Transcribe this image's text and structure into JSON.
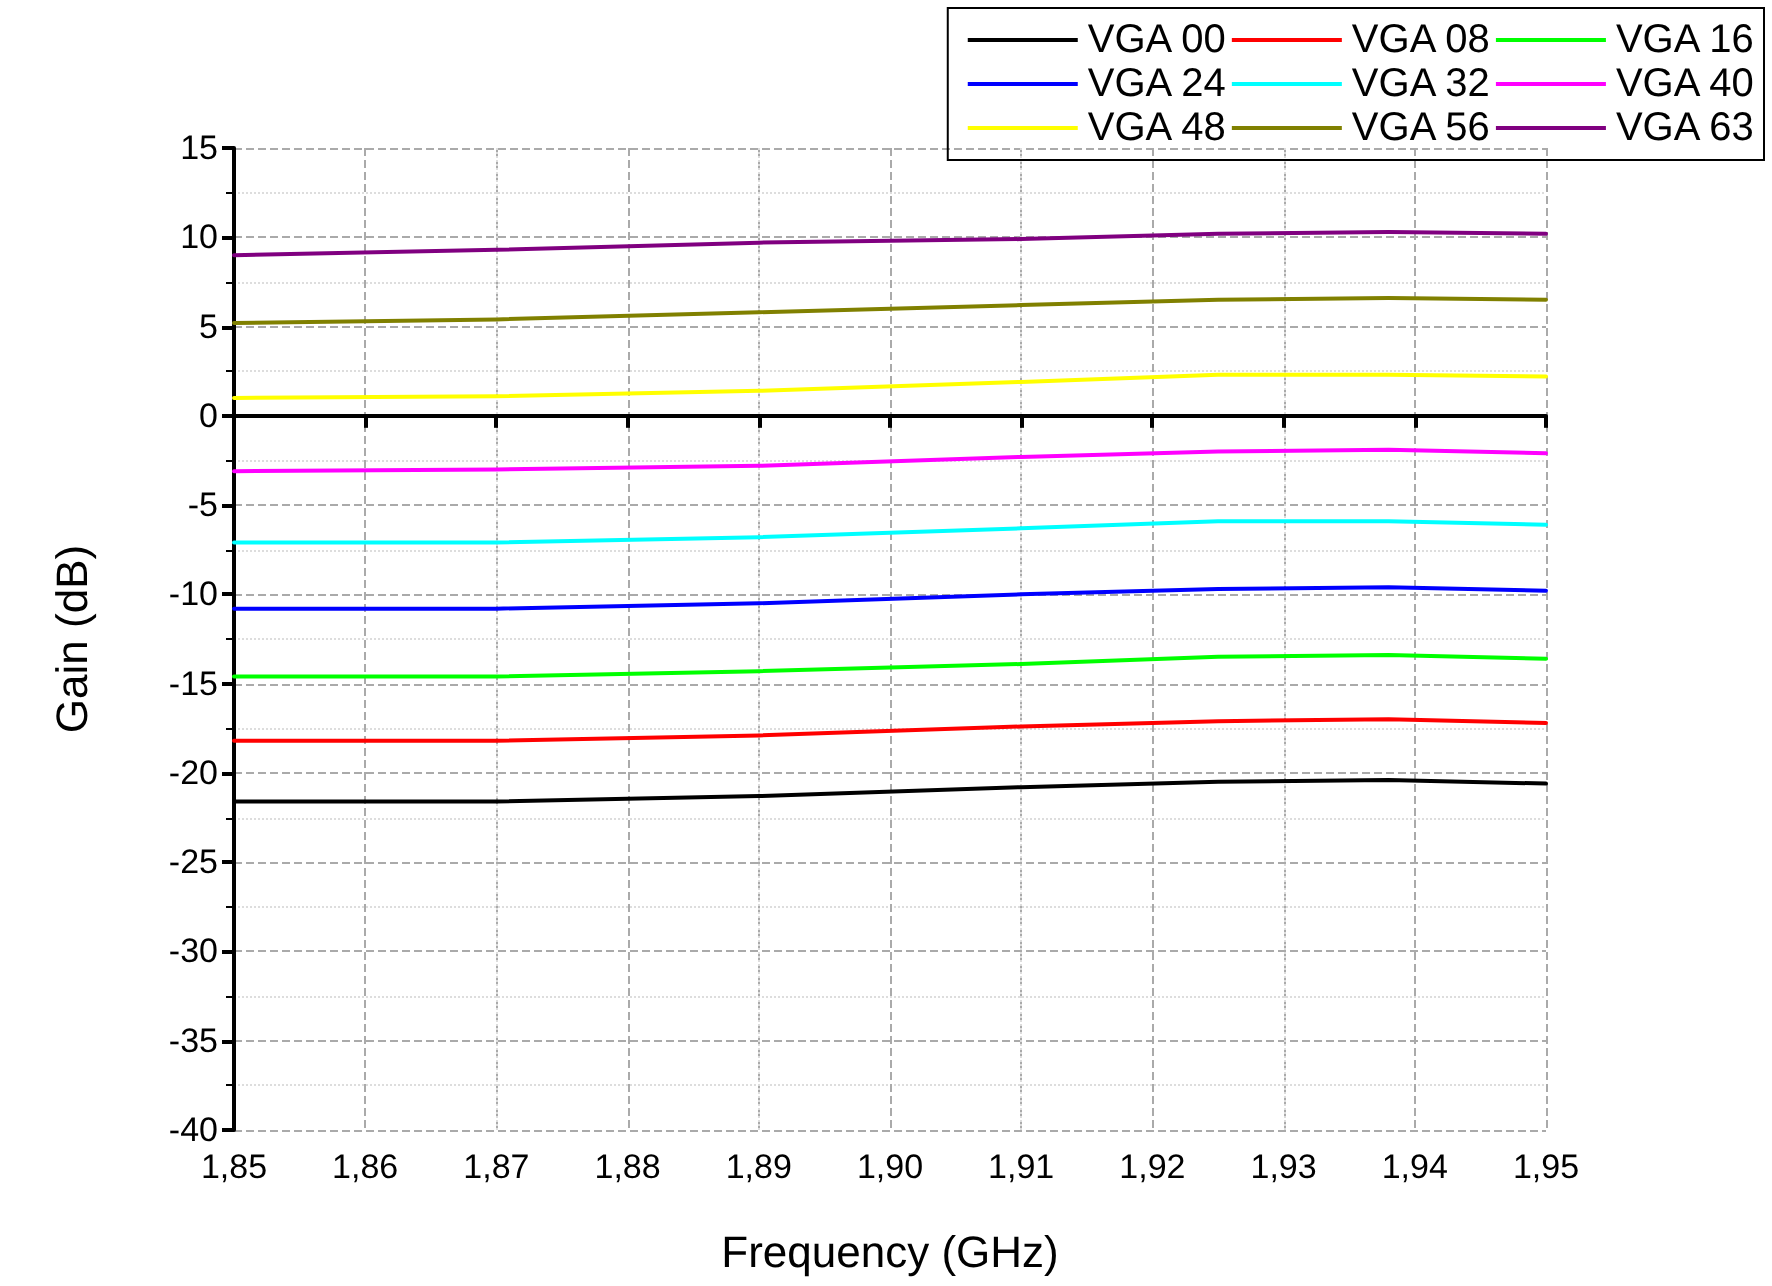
{
  "chart_data": {
    "type": "line",
    "xlabel": "Frequency (GHz)",
    "ylabel": "Gain (dB)",
    "x": [
      1.85,
      1.87,
      1.89,
      1.91,
      1.925,
      1.938,
      1.95
    ],
    "xlim": [
      1.85,
      1.95
    ],
    "xticks": [
      {
        "value": 1.85,
        "label": "1,85"
      },
      {
        "value": 1.86,
        "label": "1,86"
      },
      {
        "value": 1.87,
        "label": "1,87"
      },
      {
        "value": 1.88,
        "label": "1,88"
      },
      {
        "value": 1.89,
        "label": "1,89"
      },
      {
        "value": 1.9,
        "label": "1,90"
      },
      {
        "value": 1.91,
        "label": "1,91"
      },
      {
        "value": 1.92,
        "label": "1,92"
      },
      {
        "value": 1.93,
        "label": "1,93"
      },
      {
        "value": 1.94,
        "label": "1,94"
      },
      {
        "value": 1.95,
        "label": "1,95"
      }
    ],
    "ylim": [
      -40,
      15
    ],
    "yticks": [
      -40,
      -35,
      -30,
      -25,
      -20,
      -15,
      -10,
      -5,
      0,
      5,
      10,
      15
    ],
    "grid": true,
    "legend": "top right",
    "marker": "none",
    "line_style": "solid",
    "series": [
      {
        "name": "VGA 00",
        "color": "#000000",
        "values": [
          -21.6,
          -21.6,
          -21.3,
          -20.8,
          -20.5,
          -20.4,
          -20.6
        ]
      },
      {
        "name": "VGA 08",
        "color": "#ff0000",
        "values": [
          -18.2,
          -18.2,
          -17.9,
          -17.4,
          -17.1,
          -17.0,
          -17.2
        ]
      },
      {
        "name": "VGA 16",
        "color": "#00ff00",
        "values": [
          -14.6,
          -14.6,
          -14.3,
          -13.9,
          -13.5,
          -13.4,
          -13.6
        ]
      },
      {
        "name": "VGA 24",
        "color": "#0000ff",
        "values": [
          -10.8,
          -10.8,
          -10.5,
          -10.0,
          -9.7,
          -9.6,
          -9.8
        ]
      },
      {
        "name": "VGA 32",
        "color": "#00ffff",
        "values": [
          -7.1,
          -7.1,
          -6.8,
          -6.3,
          -5.9,
          -5.9,
          -6.1
        ]
      },
      {
        "name": "VGA 40",
        "color": "#ff00ff",
        "values": [
          -3.1,
          -3.0,
          -2.8,
          -2.3,
          -2.0,
          -1.9,
          -2.1
        ]
      },
      {
        "name": "VGA 48",
        "color": "#ffff00",
        "values": [
          1.0,
          1.1,
          1.4,
          1.9,
          2.3,
          2.3,
          2.2
        ]
      },
      {
        "name": "VGA 56",
        "color": "#808000",
        "values": [
          5.2,
          5.4,
          5.8,
          6.2,
          6.5,
          6.6,
          6.5
        ]
      },
      {
        "name": "VGA 63",
        "color": "#800080",
        "values": [
          9.0,
          9.3,
          9.7,
          9.9,
          10.2,
          10.3,
          10.2
        ]
      }
    ]
  }
}
